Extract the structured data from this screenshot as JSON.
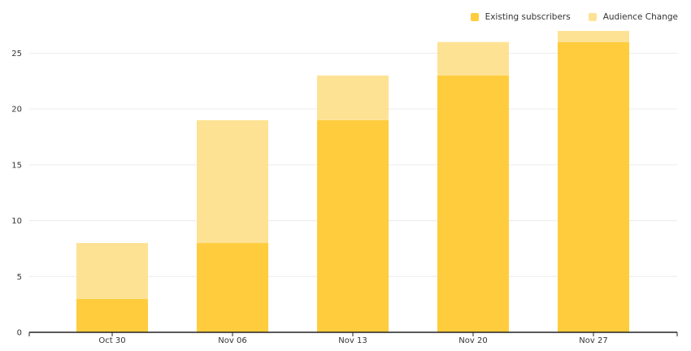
{
  "chart_data": {
    "type": "bar",
    "stacked": true,
    "categories": [
      "Oct 30",
      "Nov 06",
      "Nov 13",
      "Nov 20",
      "Nov 27"
    ],
    "series": [
      {
        "name": "Existing subscribers",
        "values": [
          3,
          8,
          19,
          23,
          26
        ],
        "color": "#FFCC3D"
      },
      {
        "name": "Audience Change",
        "values": [
          5,
          11,
          4,
          3,
          1
        ],
        "color": "#FEE294"
      }
    ],
    "ylim": [
      0,
      27
    ],
    "yticks": [
      0,
      5,
      10,
      15,
      20,
      25
    ],
    "grid": true,
    "legend_position": "top-right"
  }
}
